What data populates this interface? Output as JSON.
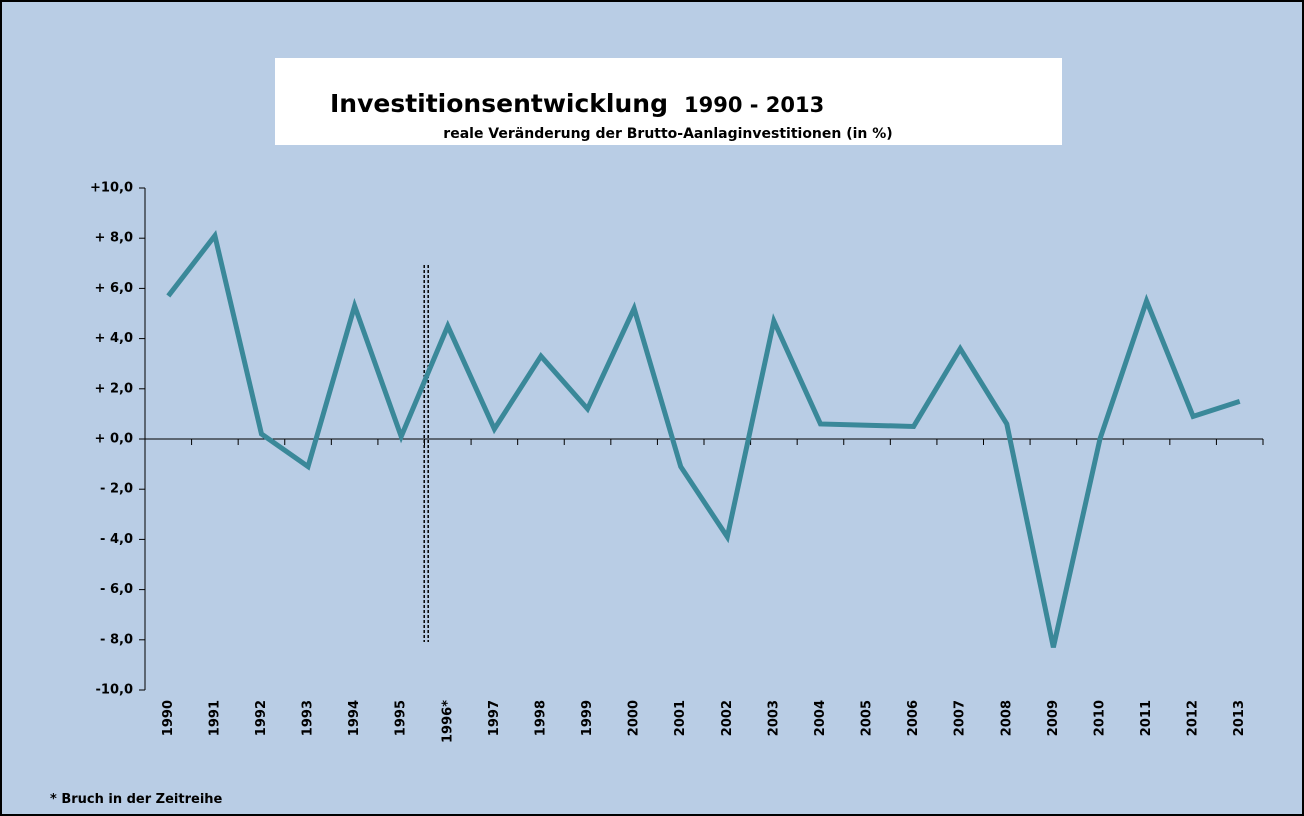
{
  "chart_data": {
    "type": "line",
    "title": "Investitionsentwicklung",
    "title_period": "1990 - 2013",
    "subtitle": "reale Veränderung der Brutto-Aanlaginvestitionen (in %)",
    "footnote": "* Bruch in der Zeitreihe",
    "categories": [
      "1990",
      "1991",
      "1992",
      "1993",
      "1994",
      "1995",
      "1996*",
      "1997",
      "1998",
      "1999",
      "2000",
      "2001",
      "2002",
      "2003",
      "2004",
      "2005",
      "2006",
      "2007",
      "2008",
      "2009",
      "2010",
      "2011",
      "2012",
      "2013"
    ],
    "series": [
      {
        "name": "Brutto-Aanlaginvestitionen",
        "color": "#3a8899",
        "values": [
          5.7,
          8.1,
          0.2,
          -1.1,
          5.3,
          0.1,
          4.5,
          0.4,
          3.3,
          1.2,
          5.2,
          -1.1,
          -3.9,
          4.7,
          0.6,
          0.55,
          0.5,
          3.6,
          0.6,
          -8.3,
          0.0,
          5.5,
          0.9,
          1.5
        ]
      }
    ],
    "ylim": [
      -10,
      10
    ],
    "yticks": [
      {
        "value": 10,
        "label": "+10,0"
      },
      {
        "value": 8,
        "label": "+ 8,0"
      },
      {
        "value": 6,
        "label": "+ 6,0"
      },
      {
        "value": 4,
        "label": "+ 4,0"
      },
      {
        "value": 2,
        "label": "+ 2,0"
      },
      {
        "value": 0,
        "label": "+ 0,0"
      },
      {
        "value": -2,
        "label": "- 2,0"
      },
      {
        "value": -4,
        "label": "- 4,0"
      },
      {
        "value": -6,
        "label": "- 6,0"
      },
      {
        "value": -8,
        "label": "- 8,0"
      },
      {
        "value": -10,
        "label": "-10,0"
      }
    ]
  }
}
